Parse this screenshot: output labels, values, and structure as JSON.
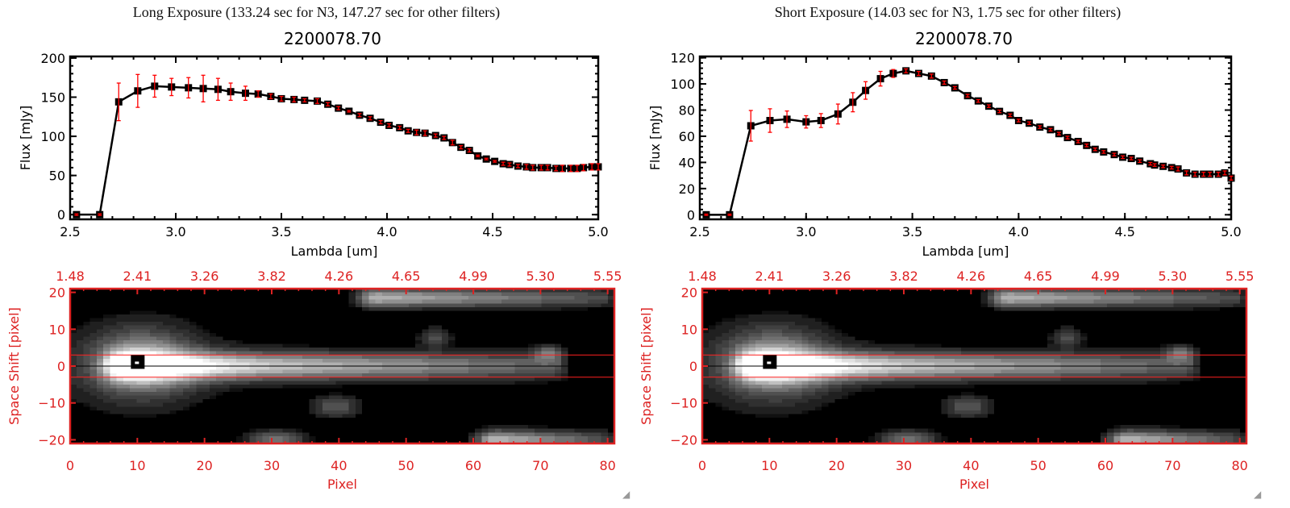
{
  "panels": [
    {
      "title": "Long Exposure (133.24 sec for N3, 147.27 sec for other filters)",
      "plot_title": "2200078.70"
    },
    {
      "title": "Short Exposure (14.03 sec for N3, 1.75 sec for other filters)",
      "plot_title": "2200078.70"
    }
  ],
  "chart_data": [
    {
      "type": "line",
      "title": "2200078.70",
      "xlabel": "Lambda [um]",
      "ylabel": "Flux [mJy]",
      "xlim": [
        2.5,
        5.0
      ],
      "ylim": [
        -6,
        202
      ],
      "xticks": [
        "2.5",
        "3.0",
        "3.5",
        "4.0",
        "4.5",
        "5.0"
      ],
      "yticks": [
        "0",
        "50",
        "100",
        "150",
        "200"
      ],
      "line_color": "#000000",
      "marker": "filled-square",
      "errorbar_color": "#ff0000",
      "x": [
        2.53,
        2.64,
        2.73,
        2.82,
        2.9,
        2.98,
        3.06,
        3.13,
        3.2,
        3.26,
        3.33,
        3.39,
        3.45,
        3.5,
        3.56,
        3.61,
        3.67,
        3.72,
        3.77,
        3.82,
        3.87,
        3.92,
        3.97,
        4.01,
        4.06,
        4.1,
        4.14,
        4.18,
        4.23,
        4.27,
        4.31,
        4.35,
        4.39,
        4.43,
        4.47,
        4.51,
        4.55,
        4.58,
        4.62,
        4.66,
        4.69,
        4.73,
        4.76,
        4.8,
        4.83,
        4.87,
        4.9,
        4.93,
        4.97,
        5.0
      ],
      "y": [
        0,
        0,
        144,
        158,
        164,
        163,
        162,
        161,
        160,
        157,
        155,
        154,
        151,
        148,
        147,
        146,
        145,
        141,
        136,
        132,
        127,
        123,
        118,
        114,
        111,
        107,
        105,
        104,
        101,
        98,
        92,
        86,
        82,
        75,
        71,
        68,
        65,
        64,
        62,
        61,
        60,
        60,
        60,
        59,
        59,
        59,
        59,
        60,
        61,
        61
      ],
      "yerr": [
        1,
        1,
        24,
        21,
        14,
        11,
        13,
        17,
        14,
        11,
        9,
        4,
        3,
        3,
        3,
        2,
        3,
        2,
        2,
        1,
        2,
        2,
        2,
        2,
        2,
        2,
        3,
        3,
        2,
        2,
        3,
        2,
        2,
        1,
        1,
        1,
        2,
        2,
        2,
        3,
        3,
        3,
        3,
        3,
        4,
        4,
        4,
        4,
        4,
        4
      ]
    },
    {
      "type": "line",
      "title": "2200078.70",
      "xlabel": "Lambda [um]",
      "ylabel": "Flux [mJy]",
      "xlim": [
        2.5,
        5.0
      ],
      "ylim": [
        -3.5,
        121
      ],
      "xticks": [
        "2.5",
        "3.0",
        "3.5",
        "4.0",
        "4.5",
        "5.0"
      ],
      "yticks": [
        "0",
        "20",
        "40",
        "60",
        "80",
        "100",
        "120"
      ],
      "line_color": "#000000",
      "marker": "filled-square",
      "errorbar_color": "#ff0000",
      "x": [
        2.53,
        2.64,
        2.74,
        2.83,
        2.91,
        3.0,
        3.07,
        3.15,
        3.22,
        3.28,
        3.35,
        3.41,
        3.47,
        3.53,
        3.59,
        3.65,
        3.7,
        3.76,
        3.81,
        3.86,
        3.91,
        3.96,
        4.0,
        4.05,
        4.1,
        4.15,
        4.19,
        4.23,
        4.28,
        4.32,
        4.36,
        4.4,
        4.45,
        4.49,
        4.53,
        4.57,
        4.62,
        4.64,
        4.68,
        4.72,
        4.75,
        4.79,
        4.83,
        4.87,
        4.9,
        4.94,
        4.97,
        5.0
      ],
      "y": [
        0,
        0,
        68,
        72,
        73,
        71,
        72,
        77,
        86,
        95,
        104,
        108,
        110,
        108,
        106,
        101,
        97,
        91,
        87,
        83,
        79,
        76,
        72,
        70,
        67,
        65,
        62,
        59,
        56,
        53,
        50,
        48,
        46,
        44,
        43,
        41,
        39,
        38,
        37,
        36,
        35,
        32,
        31,
        31,
        31,
        31,
        32,
        28
      ],
      "yerr": [
        0.5,
        0.5,
        11.7,
        9,
        6.3,
        4.7,
        5.3,
        7.6,
        7.3,
        6.7,
        5.6,
        3,
        1.5,
        1.5,
        1.5,
        1.2,
        1,
        1,
        1,
        1,
        1,
        1,
        1,
        1,
        1,
        1,
        1,
        1,
        1,
        1,
        1,
        1,
        1,
        1,
        1,
        1,
        1,
        1,
        1,
        1,
        1.5,
        1.5,
        1.5,
        1.5,
        1.5,
        1.5,
        1.5,
        1.5
      ]
    },
    {
      "type": "heatmap",
      "colormap": "grayscale",
      "xlabel": "Pixel",
      "ylabel": "Space Shift [pixel]",
      "axis_color": "#dd2222",
      "xlim": [
        0,
        81
      ],
      "ylim": [
        -21,
        21
      ],
      "xticks": [
        "0",
        "10",
        "20",
        "30",
        "40",
        "50",
        "60",
        "70",
        "80"
      ],
      "yticks": [
        "-20",
        "-10",
        "0",
        "10",
        "20"
      ],
      "top_xticks": [
        "1.48",
        "2.41",
        "3.26",
        "3.82",
        "4.26",
        "4.65",
        "4.99",
        "5.30",
        "5.55"
      ],
      "aperture_lines": [
        -3,
        3
      ],
      "center_line": 0,
      "target_marker": [
        10,
        1
      ],
      "features": [
        {
          "kind": "streak",
          "x0": 8,
          "x1": 73,
          "y": 0,
          "sy": 2.6,
          "amp0": 1.0,
          "amp1": 0.35
        },
        {
          "kind": "blob",
          "x": 11,
          "y": 1,
          "sx": 5,
          "sy": 6,
          "amp": 0.45
        },
        {
          "kind": "blob",
          "x": 10,
          "y": 0,
          "sx": 9,
          "sy": 8,
          "amp": 0.25
        },
        {
          "kind": "streak",
          "x0": 46,
          "x1": 80,
          "y": 18.5,
          "sy": 1.8,
          "amp0": 0.7,
          "amp1": 0.3
        },
        {
          "kind": "streak",
          "x0": 64,
          "x1": 80,
          "y": -20,
          "sy": 1.8,
          "amp0": 0.75,
          "amp1": 0.3
        },
        {
          "kind": "blob",
          "x": 31,
          "y": -20,
          "sx": 3,
          "sy": 1.8,
          "amp": 0.45
        },
        {
          "kind": "blob",
          "x": 40,
          "y": -11,
          "sx": 2.5,
          "sy": 2,
          "amp": 0.35
        },
        {
          "kind": "blob",
          "x": 55,
          "y": 8,
          "sx": 1.6,
          "sy": 1.8,
          "amp": 0.3
        },
        {
          "kind": "blob",
          "x": 72,
          "y": 3.5,
          "sx": 1.5,
          "sy": 1.6,
          "amp": 0.35
        }
      ]
    }
  ]
}
